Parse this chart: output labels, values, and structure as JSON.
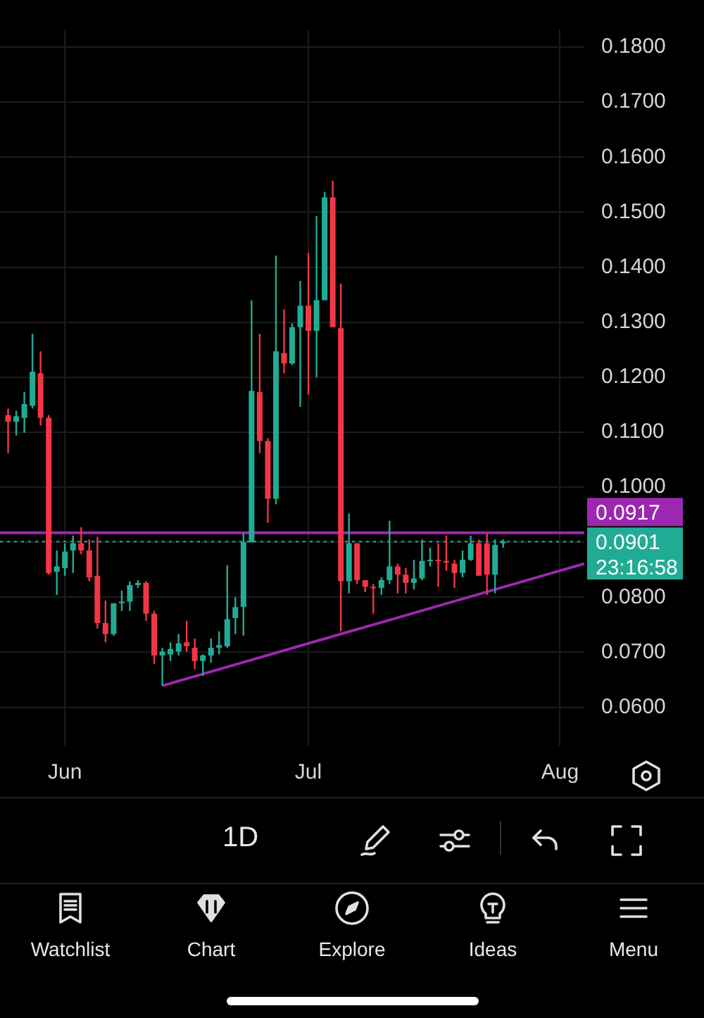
{
  "chart_data": {
    "type": "candlestick",
    "x": [
      "--05-25",
      "--05-26",
      "--05-27",
      "--05-28",
      "--05-29",
      "--05-30",
      "--05-31",
      "--06-01",
      "--06-02",
      "--06-03",
      "--06-04",
      "--06-05",
      "--06-06",
      "--06-07",
      "--06-08",
      "--06-09",
      "--06-10",
      "--06-11",
      "--06-12",
      "--06-13",
      "--06-14",
      "--06-15",
      "--06-16",
      "--06-17",
      "--06-18",
      "--06-19",
      "--06-20",
      "--06-21",
      "--06-22",
      "--06-23",
      "--06-24",
      "--06-25",
      "--06-26",
      "--06-27",
      "--06-28",
      "--06-29",
      "--06-30",
      "--07-01",
      "--07-02",
      "--07-03",
      "--07-04",
      "--07-05",
      "--07-06",
      "--07-07",
      "--07-08",
      "--07-09",
      "--07-10",
      "--07-11",
      "--07-12",
      "--07-13",
      "--07-14",
      "--07-15",
      "--07-16",
      "--07-17",
      "--07-18",
      "--07-19",
      "--07-20",
      "--07-21",
      "--07-22",
      "--07-23",
      "--07-24",
      "--07-25"
    ],
    "ohlc": [
      [
        0.1131,
        0.1143,
        0.1062,
        0.1119
      ],
      [
        0.1119,
        0.1139,
        0.1094,
        0.1129
      ],
      [
        0.1126,
        0.1173,
        0.1099,
        0.1151
      ],
      [
        0.1148,
        0.1279,
        0.1143,
        0.121
      ],
      [
        0.1207,
        0.1247,
        0.1112,
        0.1126
      ],
      [
        0.1126,
        0.1131,
        0.0841,
        0.0844
      ],
      [
        0.0846,
        0.0885,
        0.0804,
        0.0856
      ],
      [
        0.0853,
        0.0898,
        0.0839,
        0.0883
      ],
      [
        0.0885,
        0.0912,
        0.0844,
        0.0898
      ],
      [
        0.0898,
        0.0927,
        0.0878,
        0.0885
      ],
      [
        0.0885,
        0.0905,
        0.0829,
        0.0836
      ],
      [
        0.0839,
        0.091,
        0.0743,
        0.0753
      ],
      [
        0.0753,
        0.0794,
        0.0718,
        0.0733
      ],
      [
        0.0733,
        0.0789,
        0.073,
        0.0789
      ],
      [
        0.0789,
        0.0812,
        0.0775,
        0.0792
      ],
      [
        0.0792,
        0.0829,
        0.0775,
        0.0822
      ],
      [
        0.0822,
        0.0831,
        0.0817,
        0.0826
      ],
      [
        0.0826,
        0.0829,
        0.0757,
        0.077
      ],
      [
        0.077,
        0.0775,
        0.0679,
        0.0694
      ],
      [
        0.0694,
        0.0708,
        0.0639,
        0.0701
      ],
      [
        0.0696,
        0.0718,
        0.0684,
        0.0706
      ],
      [
        0.0701,
        0.0733,
        0.0694,
        0.0716
      ],
      [
        0.0718,
        0.0757,
        0.0701,
        0.0711
      ],
      [
        0.0708,
        0.0725,
        0.0669,
        0.0684
      ],
      [
        0.0684,
        0.0696,
        0.0657,
        0.0694
      ],
      [
        0.0694,
        0.0725,
        0.0681,
        0.0708
      ],
      [
        0.0708,
        0.0738,
        0.0696,
        0.0713
      ],
      [
        0.0711,
        0.0858,
        0.0708,
        0.076
      ],
      [
        0.0762,
        0.08,
        0.0733,
        0.0782
      ],
      [
        0.0782,
        0.0917,
        0.073,
        0.09
      ],
      [
        0.09,
        0.134,
        0.09,
        0.1175
      ],
      [
        0.1173,
        0.1279,
        0.1062,
        0.1084
      ],
      [
        0.1084,
        0.1089,
        0.0935,
        0.0979
      ],
      [
        0.0979,
        0.1421,
        0.0969,
        0.1247
      ],
      [
        0.1244,
        0.1323,
        0.1207,
        0.1225
      ],
      [
        0.1225,
        0.1298,
        0.1222,
        0.1291
      ],
      [
        0.1291,
        0.1375,
        0.1146,
        0.133
      ],
      [
        0.133,
        0.1426,
        0.1168,
        0.1284
      ],
      [
        0.1284,
        0.1493,
        0.12,
        0.134
      ],
      [
        0.134,
        0.1537,
        0.134,
        0.1527
      ],
      [
        0.1527,
        0.1557,
        0.1291,
        0.1291
      ],
      [
        0.1289,
        0.137,
        0.0738,
        0.0829
      ],
      [
        0.0829,
        0.0952,
        0.0807,
        0.0898
      ],
      [
        0.0898,
        0.0898,
        0.0824,
        0.0831
      ],
      [
        0.0831,
        0.0831,
        0.0809,
        0.0819
      ],
      [
        0.0819,
        0.0824,
        0.077,
        0.0817
      ],
      [
        0.0817,
        0.0836,
        0.0804,
        0.0831
      ],
      [
        0.0831,
        0.0939,
        0.0824,
        0.0856
      ],
      [
        0.0856,
        0.0861,
        0.0807,
        0.0841
      ],
      [
        0.0841,
        0.0853,
        0.0807,
        0.0826
      ],
      [
        0.0826,
        0.0868,
        0.0814,
        0.0834
      ],
      [
        0.0834,
        0.0905,
        0.0831,
        0.0866
      ],
      [
        0.0866,
        0.089,
        0.0856,
        0.0868
      ],
      [
        0.0868,
        0.0898,
        0.0819,
        0.0866
      ],
      [
        0.0866,
        0.0912,
        0.0848,
        0.0863
      ],
      [
        0.0861,
        0.0868,
        0.0817,
        0.0844
      ],
      [
        0.0844,
        0.0885,
        0.0836,
        0.0868
      ],
      [
        0.0868,
        0.0912,
        0.0866,
        0.0898
      ],
      [
        0.0898,
        0.0905,
        0.0839,
        0.0839
      ],
      [
        0.0898,
        0.0915,
        0.0804,
        0.0841
      ],
      [
        0.0841,
        0.0905,
        0.0807,
        0.0895
      ],
      [
        0.0898,
        0.0905,
        0.089,
        0.0901
      ]
    ],
    "colors": [
      "#f23645",
      "#22ab94",
      "#22ab94",
      "#22ab94",
      "#f23645",
      "#f23645",
      "#22ab94",
      "#22ab94",
      "#22ab94",
      "#f23645",
      "#f23645",
      "#f23645",
      "#f23645",
      "#22ab94",
      "#22ab94",
      "#22ab94",
      "#22ab94",
      "#f23645",
      "#f23645",
      "#22ab94",
      "#22ab94",
      "#22ab94",
      "#f23645",
      "#f23645",
      "#22ab94",
      "#22ab94",
      "#22ab94",
      "#22ab94",
      "#22ab94",
      "#22ab94",
      "#22ab94",
      "#f23645",
      "#f23645",
      "#22ab94",
      "#f23645",
      "#22ab94",
      "#22ab94",
      "#f23645",
      "#22ab94",
      "#22ab94",
      "#f23645",
      "#f23645",
      "#22ab94",
      "#f23645",
      "#f23645",
      "#f23645",
      "#22ab94",
      "#22ab94",
      "#f23645",
      "#f23645",
      "#22ab94",
      "#22ab94",
      "#22ab94",
      "#f23645",
      "#f23645",
      "#f23645",
      "#22ab94",
      "#22ab94",
      "#f23645",
      "#f23645",
      "#22ab94",
      "#22ab94"
    ],
    "series": [
      {
        "type": "line",
        "color": "#9c27b0",
        "x": [
          "--06-13",
          "--08-04"
        ],
        "values": [
          0.0639,
          0.0861
        ]
      }
    ],
    "xlim": [
      "--05-24",
      "--08-04"
    ],
    "xticks": [
      {
        "value": "--06-01",
        "label": "Jun"
      },
      {
        "value": "--07-01",
        "label": "Jul"
      },
      {
        "value": "--08-01",
        "label": "Aug"
      }
    ],
    "ylim": [
      0.0529,
      0.1832
    ],
    "yticks": [
      {
        "value": 0.06,
        "label": "0.0600"
      },
      {
        "value": 0.07,
        "label": "0.0700"
      },
      {
        "value": 0.08,
        "label": "0.0800"
      },
      {
        "value": 0.09,
        "label": null
      },
      {
        "value": 0.1,
        "label": "0.1000"
      },
      {
        "value": 0.11,
        "label": "0.1100"
      },
      {
        "value": 0.12,
        "label": "0.1200"
      },
      {
        "value": 0.13,
        "label": "0.1300"
      },
      {
        "value": 0.14,
        "label": "0.1400"
      },
      {
        "value": 0.15,
        "label": "0.1500"
      },
      {
        "value": 0.16,
        "label": "0.1600"
      },
      {
        "value": 0.17,
        "label": "0.1700"
      },
      {
        "value": 0.18,
        "label": "0.1800"
      }
    ],
    "grid": true,
    "ref_lines": [
      {
        "axis": "y",
        "value": 0.0917,
        "label": "0.0917",
        "color": "#9c27b0"
      },
      {
        "axis": "y",
        "value": 0.0901,
        "label": "0.0901",
        "color": "#22ab94",
        "line_style": "dotted"
      }
    ],
    "annotations": [
      "23:16:58",
      "1D",
      "Watchlist",
      "Chart",
      "Explore",
      "Ideas",
      "Menu"
    ]
  }
}
